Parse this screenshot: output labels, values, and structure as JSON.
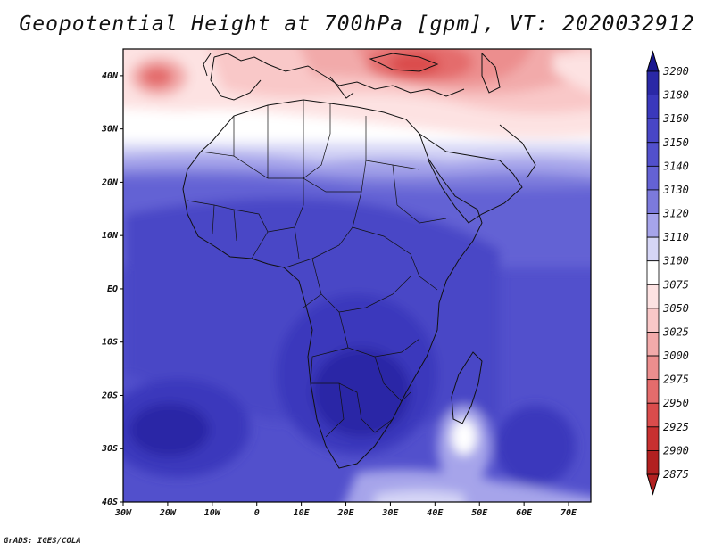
{
  "title": "Geopotential Height at 700hPa [gpm], VT: 2020032912",
  "credit": "GrADS: IGES/COLA",
  "axes": {
    "lon_range": [
      -30,
      75
    ],
    "lat_range": [
      -40,
      45
    ],
    "x_ticks": [
      {
        "lon": -30,
        "label": "30W"
      },
      {
        "lon": -20,
        "label": "20W"
      },
      {
        "lon": -10,
        "label": "10W"
      },
      {
        "lon": 0,
        "label": "0"
      },
      {
        "lon": 10,
        "label": "10E"
      },
      {
        "lon": 20,
        "label": "20E"
      },
      {
        "lon": 30,
        "label": "30E"
      },
      {
        "lon": 40,
        "label": "40E"
      },
      {
        "lon": 50,
        "label": "50E"
      },
      {
        "lon": 60,
        "label": "60E"
      },
      {
        "lon": 70,
        "label": "70E"
      }
    ],
    "y_ticks": [
      {
        "lat": 40,
        "label": "40N"
      },
      {
        "lat": 30,
        "label": "30N"
      },
      {
        "lat": 20,
        "label": "20N"
      },
      {
        "lat": 10,
        "label": "10N"
      },
      {
        "lat": 0,
        "label": "EQ"
      },
      {
        "lat": -10,
        "label": "10S"
      },
      {
        "lat": -20,
        "label": "20S"
      },
      {
        "lat": -30,
        "label": "30S"
      },
      {
        "lat": -40,
        "label": "40S"
      }
    ]
  },
  "colorbar": {
    "labels": [
      "3200",
      "3180",
      "3160",
      "3150",
      "3140",
      "3130",
      "3120",
      "3110",
      "3100",
      "3075",
      "3050",
      "3025",
      "3000",
      "2975",
      "2950",
      "2925",
      "2900",
      "2875"
    ],
    "colors": [
      "#1a1890",
      "#2a28a6",
      "#3a38bc",
      "#4846c6",
      "#5250cc",
      "#6462d4",
      "#7c7adc",
      "#a6a4ea",
      "#d6d6f6",
      "#ffffff",
      "#fde2e2",
      "#f9c8c8",
      "#f2aaaa",
      "#ec8e8e",
      "#e46c6c",
      "#da4c4c",
      "#c83030",
      "#b22020"
    ]
  },
  "chart_data": {
    "type": "heatmap",
    "title": "Geopotential Height at 700hPa [gpm], VT: 2020032912",
    "variable": "Geopotential Height at 700hPa",
    "units": "gpm",
    "valid_time": "2020032912",
    "lon_range": [
      -30,
      75
    ],
    "lat_range": [
      -40,
      45
    ],
    "levels": [
      2875,
      2900,
      2925,
      2950,
      2975,
      3000,
      3025,
      3050,
      3075,
      3100,
      3110,
      3120,
      3130,
      3140,
      3150,
      3160,
      3180,
      3200
    ],
    "features": [
      {
        "name": "low over Caucasus/Black Sea",
        "lon": 35,
        "lat": 42,
        "value": 2925
      },
      {
        "name": "low west of Iberia",
        "lon": -23,
        "lat": 40,
        "value": 2950
      },
      {
        "name": "high Southern Africa",
        "lon": 28,
        "lat": -22,
        "value": 3180
      },
      {
        "name": "high South Atlantic",
        "lon": -20,
        "lat": -28,
        "value": 3180
      },
      {
        "name": "low south of Madagascar",
        "lon": 46,
        "lat": -33,
        "value": 3075
      }
    ]
  }
}
